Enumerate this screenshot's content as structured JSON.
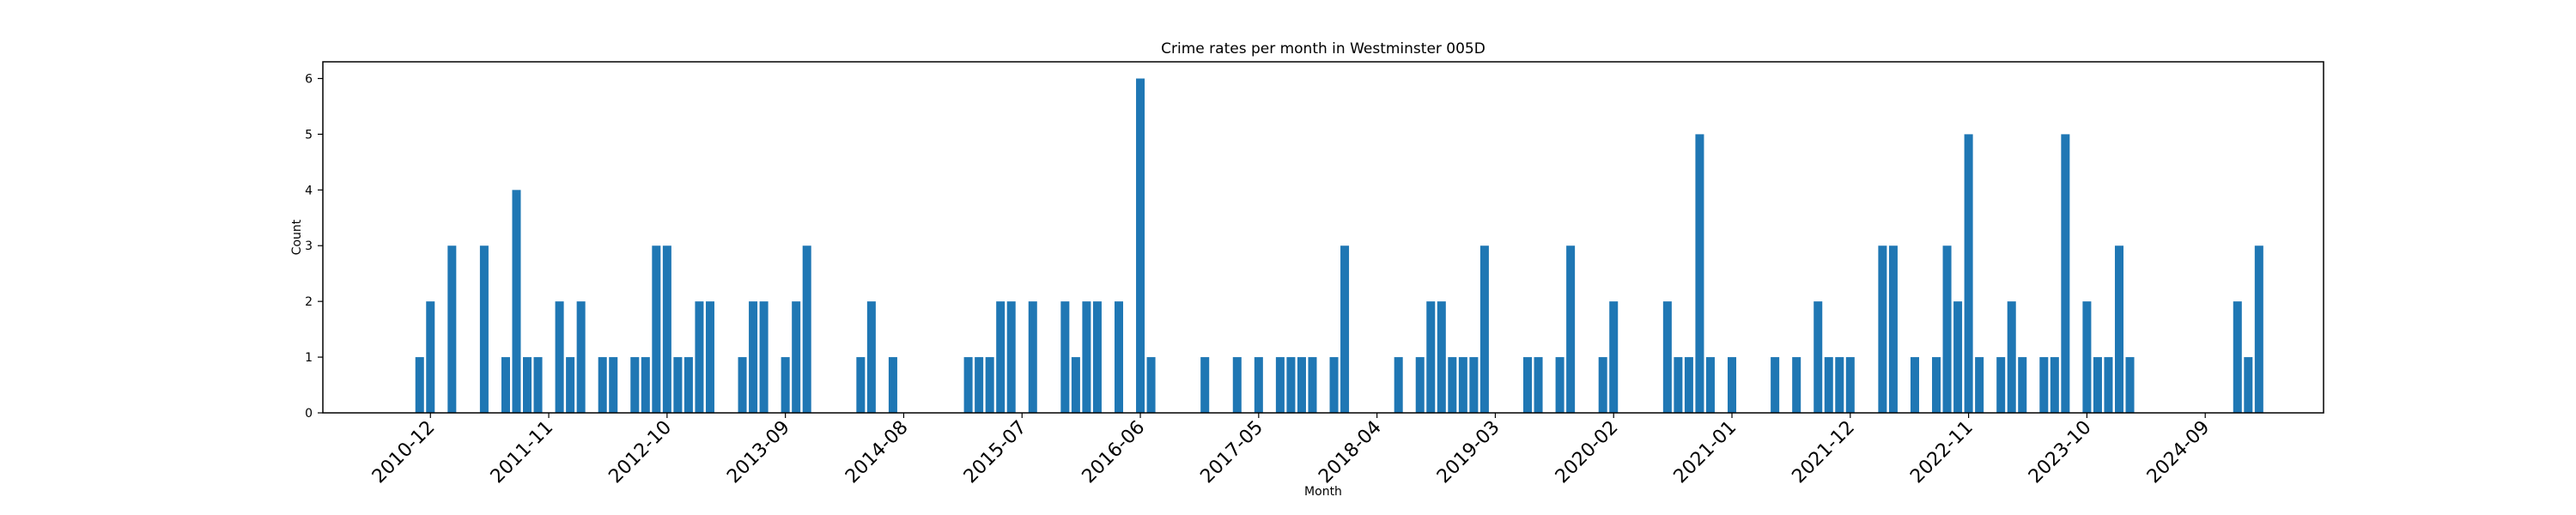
{
  "chart_data": {
    "type": "bar",
    "title": "Crime rates per month in Westminster 005D",
    "xlabel": "Month",
    "ylabel": "Count",
    "ylim": [
      0,
      6.3
    ],
    "yticks": [
      0,
      1,
      2,
      3,
      4,
      5,
      6
    ],
    "xlim": [
      "2010-02",
      "2025-08"
    ],
    "xticks": [
      "2010-12",
      "2011-11",
      "2012-10",
      "2013-09",
      "2014-08",
      "2015-07",
      "2016-06",
      "2017-05",
      "2018-04",
      "2019-03",
      "2020-02",
      "2021-01",
      "2021-12",
      "2022-11",
      "2023-10",
      "2024-09"
    ],
    "grid": false,
    "legend": "none",
    "bar_color": "#1f77b4",
    "x": [
      "2010-11",
      "2010-12",
      "2011-02",
      "2011-05",
      "2011-07",
      "2011-08",
      "2011-09",
      "2011-10",
      "2011-12",
      "2012-01",
      "2012-02",
      "2012-04",
      "2012-05",
      "2012-07",
      "2012-08",
      "2012-09",
      "2012-10",
      "2012-11",
      "2012-12",
      "2013-01",
      "2013-02",
      "2013-05",
      "2013-06",
      "2013-07",
      "2013-09",
      "2013-10",
      "2013-11",
      "2014-04",
      "2014-05",
      "2014-07",
      "2015-02",
      "2015-03",
      "2015-04",
      "2015-05",
      "2015-06",
      "2015-08",
      "2015-11",
      "2015-12",
      "2016-01",
      "2016-02",
      "2016-04",
      "2016-06",
      "2016-07",
      "2016-12",
      "2017-03",
      "2017-05",
      "2017-07",
      "2017-08",
      "2017-09",
      "2017-10",
      "2017-12",
      "2018-01",
      "2018-06",
      "2018-08",
      "2018-09",
      "2018-10",
      "2018-11",
      "2018-12",
      "2019-01",
      "2019-02",
      "2019-06",
      "2019-07",
      "2019-09",
      "2019-10",
      "2020-01",
      "2020-02",
      "2020-07",
      "2020-08",
      "2020-09",
      "2020-10",
      "2020-11",
      "2021-01",
      "2021-05",
      "2021-07",
      "2021-09",
      "2021-10",
      "2021-11",
      "2021-12",
      "2022-03",
      "2022-04",
      "2022-06",
      "2022-08",
      "2022-09",
      "2022-10",
      "2022-11",
      "2022-12",
      "2023-02",
      "2023-03",
      "2023-04",
      "2023-06",
      "2023-07",
      "2023-08",
      "2023-10",
      "2023-11",
      "2023-12",
      "2024-01",
      "2024-02",
      "2024-12",
      "2025-01",
      "2025-02"
    ],
    "values": [
      1,
      2,
      3,
      3,
      1,
      4,
      1,
      1,
      2,
      1,
      2,
      1,
      1,
      1,
      1,
      3,
      3,
      1,
      1,
      2,
      2,
      1,
      2,
      2,
      1,
      2,
      3,
      1,
      2,
      1,
      1,
      1,
      1,
      2,
      2,
      2,
      2,
      1,
      2,
      2,
      2,
      6,
      1,
      1,
      1,
      1,
      1,
      1,
      1,
      1,
      1,
      3,
      1,
      1,
      2,
      2,
      1,
      1,
      1,
      3,
      1,
      1,
      1,
      3,
      1,
      2,
      2,
      1,
      1,
      5,
      1,
      1,
      1,
      1,
      2,
      1,
      1,
      1,
      3,
      3,
      1,
      1,
      3,
      2,
      5,
      1,
      1,
      2,
      1,
      1,
      1,
      5,
      2,
      1,
      1,
      3,
      1,
      2,
      1,
      3
    ]
  }
}
